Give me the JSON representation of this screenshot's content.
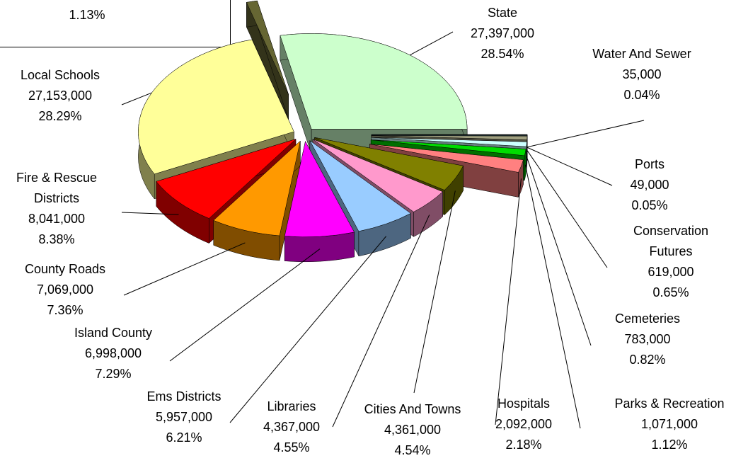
{
  "chart_data": {
    "type": "pie",
    "categories": [
      "State",
      "Water And Sewer",
      "Ports",
      "Conservation Futures",
      "Cemeteries",
      "Parks & Recreation",
      "Hospitals",
      "Cities And Towns",
      "Libraries",
      "Ems Districts",
      "Island County",
      "County Roads",
      "Fire & Rescue Districts",
      "Local Schools",
      null
    ],
    "values": [
      27397000,
      35000,
      49000,
      619000,
      783000,
      1071000,
      2092000,
      4361000,
      4367000,
      5957000,
      6998000,
      7069000,
      8041000,
      27153000,
      1085000
    ],
    "value_labels": [
      "27,397,000",
      "35,000",
      "49,000",
      "619,000",
      "783,000",
      "1,071,000",
      "2,092,000",
      "4,361,000",
      "4,367,000",
      "5,957,000",
      "6,998,000",
      "7,069,000",
      "8,041,000",
      "27,153,000",
      null
    ],
    "percents": [
      28.54,
      0.04,
      0.05,
      0.65,
      0.82,
      1.12,
      2.18,
      4.54,
      4.55,
      6.21,
      7.29,
      7.36,
      8.38,
      28.29,
      1.13
    ],
    "percent_labels": [
      "28.54%",
      "0.04%",
      "0.05%",
      "0.65%",
      "0.82%",
      "1.12%",
      "2.18%",
      "4.54%",
      "4.55%",
      "6.21%",
      "7.29%",
      "7.36%",
      "8.38%",
      "28.29%",
      "1.13%"
    ],
    "colors": [
      "#ccffcc",
      "#333399",
      "#5f8a8a",
      "#a0a080",
      "#ccffff",
      "#00dd00",
      "#ff8080",
      "#808000",
      "#ff99cc",
      "#99ccff",
      "#ff00ff",
      "#ff9900",
      "#ff0000",
      "#ffff99",
      "#666633"
    ]
  }
}
